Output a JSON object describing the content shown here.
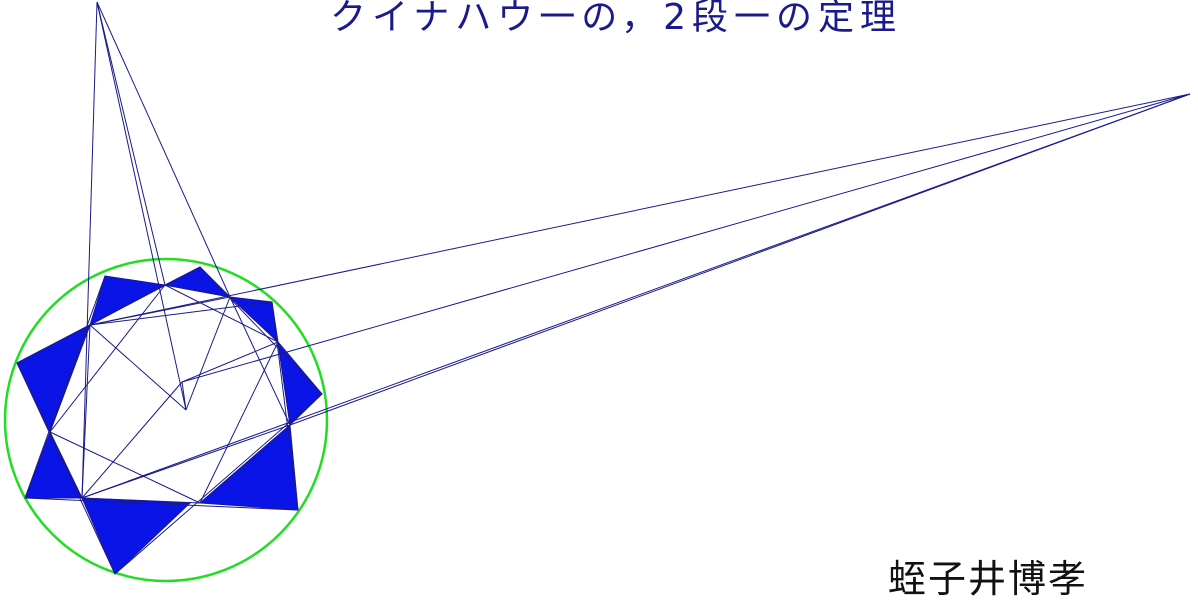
{
  "title": "クイナハウ一の，2段一の定理",
  "author": "蛭子井博孝",
  "colors": {
    "lines": "#1a1a8c",
    "triangles": "#0a14e6",
    "circle": "#22dd22",
    "background": "#ffffff"
  }
}
